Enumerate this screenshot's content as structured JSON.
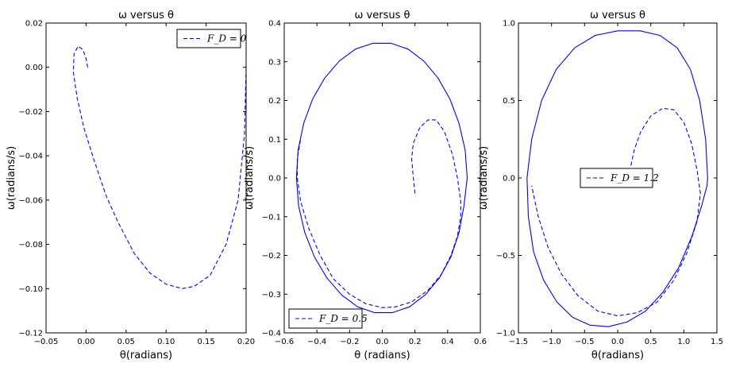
{
  "chart_data": [
    {
      "type": "line",
      "title": "ω versus θ",
      "xlabel": "θ(radians)",
      "ylabel": "ω(radians/s)",
      "xlim": [
        -0.05,
        0.2
      ],
      "ylim": [
        -0.12,
        0.02
      ],
      "xticks": [
        -0.05,
        0.0,
        0.05,
        0.1,
        0.15,
        0.2
      ],
      "yticks": [
        -0.12,
        -0.1,
        -0.08,
        -0.06,
        -0.04,
        -0.02,
        0.0,
        0.02
      ],
      "xtick_labels": [
        "−0.05",
        "0.00",
        "0.05",
        "0.10",
        "0.15",
        "0.20"
      ],
      "ytick_labels": [
        "−0.12",
        "−0.10",
        "−0.08",
        "−0.06",
        "−0.04",
        "−0.02",
        "0.00",
        "0.02"
      ],
      "legend": {
        "label": "F_D = 0",
        "position": "upper right"
      },
      "grid": false,
      "series": [
        {
          "name": "F_D = 0",
          "style": "dashed",
          "color": "#0000ff",
          "x": [
            0.2,
            0.198,
            0.19,
            0.175,
            0.155,
            0.135,
            0.12,
            0.1,
            0.08,
            0.06,
            0.04,
            0.025,
            0.01,
            -0.003,
            -0.011,
            -0.016,
            -0.015,
            -0.01,
            -0.004,
            0.0,
            0.002
          ],
          "y": [
            0.0,
            -0.03,
            -0.06,
            -0.08,
            -0.094,
            -0.099,
            -0.1,
            -0.098,
            -0.093,
            -0.084,
            -0.07,
            -0.058,
            -0.042,
            -0.027,
            -0.014,
            -0.002,
            0.006,
            0.0095,
            0.008,
            0.004,
            0.0
          ]
        }
      ]
    },
    {
      "type": "line",
      "title": "ω versus θ",
      "xlabel": "θ (radians)",
      "ylabel": "ω(radians/s)",
      "xlim": [
        -0.6,
        0.6
      ],
      "ylim": [
        -0.4,
        0.4
      ],
      "xticks": [
        -0.6,
        -0.4,
        -0.2,
        0.0,
        0.2,
        0.4,
        0.6
      ],
      "yticks": [
        -0.4,
        -0.3,
        -0.2,
        -0.1,
        0.0,
        0.1,
        0.2,
        0.3,
        0.4
      ],
      "xtick_labels": [
        "−0.6",
        "−0.4",
        "−0.2",
        "0.0",
        "0.2",
        "0.4",
        "0.6"
      ],
      "ytick_labels": [
        "−0.4",
        "−0.3",
        "−0.2",
        "−0.1",
        "0.0",
        "0.1",
        "0.2",
        "0.3",
        "0.4"
      ],
      "legend": {
        "label": "F_D = 0.5",
        "position": "lower left"
      },
      "grid": false,
      "series": [
        {
          "name": "F_D = 0.5",
          "style": "dashed",
          "color": "#0000ff",
          "x": [
            0.2,
            0.19,
            0.18,
            0.19,
            0.23,
            0.28,
            0.33,
            0.38,
            0.43,
            0.46,
            0.48,
            0.48,
            0.46,
            0.42,
            0.36,
            0.28,
            0.18,
            0.08,
            0.0,
            -0.1,
            -0.2,
            -0.3,
            -0.38,
            -0.45,
            -0.5,
            -0.52,
            -0.52,
            -0.5
          ],
          "y": [
            -0.04,
            0.0,
            0.05,
            0.09,
            0.13,
            0.15,
            0.15,
            0.12,
            0.06,
            0.0,
            -0.06,
            -0.1,
            -0.15,
            -0.2,
            -0.25,
            -0.29,
            -0.32,
            -0.333,
            -0.335,
            -0.325,
            -0.3,
            -0.26,
            -0.2,
            -0.13,
            -0.06,
            0.0,
            0.05,
            0.1
          ]
        },
        {
          "name": "",
          "style": "solid",
          "color": "#0000ff",
          "x": [
            0.52,
            0.507,
            0.47,
            0.414,
            0.341,
            0.254,
            0.157,
            0.052,
            -0.056,
            -0.163,
            -0.263,
            -0.352,
            -0.426,
            -0.481,
            -0.515,
            -0.525,
            -0.512,
            -0.474,
            -0.415,
            -0.339,
            -0.249,
            -0.15,
            -0.046,
            0.06,
            0.166,
            0.263,
            0.35,
            0.42,
            0.47,
            0.5,
            0.52
          ],
          "y": [
            0.0,
            0.072,
            0.141,
            0.204,
            0.258,
            0.302,
            0.333,
            0.348,
            0.348,
            0.333,
            0.302,
            0.258,
            0.204,
            0.141,
            0.072,
            0.0,
            -0.072,
            -0.141,
            -0.204,
            -0.258,
            -0.302,
            -0.333,
            -0.348,
            -0.348,
            -0.333,
            -0.302,
            -0.258,
            -0.204,
            -0.141,
            -0.072,
            0.0
          ]
        }
      ]
    },
    {
      "type": "line",
      "title": "ω versus θ",
      "xlabel": "θ(radians)",
      "ylabel": "ω(radians/s)",
      "xlim": [
        -1.5,
        1.5
      ],
      "ylim": [
        -1.0,
        1.0
      ],
      "xticks": [
        -1.5,
        -1.0,
        -0.5,
        0.0,
        0.5,
        1.0,
        1.5
      ],
      "yticks": [
        -1.0,
        -0.5,
        0.0,
        0.5,
        1.0
      ],
      "xtick_labels": [
        "−1.5",
        "−1.0",
        "−0.5",
        "0.0",
        "0.5",
        "1.0",
        "1.5"
      ],
      "ytick_labels": [
        "−1.0",
        "−0.5",
        "0.0",
        "0.5",
        "1.0"
      ],
      "legend": {
        "label": "F_D = 1.2",
        "position": "center"
      },
      "grid": false,
      "series": [
        {
          "name": "F_D = 1.2",
          "style": "dashed",
          "color": "#0000ff",
          "x": [
            0.2,
            0.25,
            0.35,
            0.5,
            0.68,
            0.85,
            1.0,
            1.12,
            1.2,
            1.25,
            1.2,
            1.05,
            0.85,
            0.6,
            0.3,
            0.0,
            -0.3,
            -0.6,
            -0.85,
            -1.05,
            -1.2,
            -1.3
          ],
          "y": [
            0.08,
            0.18,
            0.3,
            0.4,
            0.45,
            0.44,
            0.36,
            0.22,
            0.05,
            -0.1,
            -0.28,
            -0.48,
            -0.66,
            -0.8,
            -0.87,
            -0.89,
            -0.86,
            -0.76,
            -0.62,
            -0.45,
            -0.25,
            -0.05
          ]
        },
        {
          "name": "",
          "style": "solid",
          "color": "#0000ff",
          "x": [
            1.36,
            1.33,
            1.24,
            1.1,
            0.9,
            0.64,
            0.34,
            0.0,
            -0.34,
            -0.65,
            -0.93,
            -1.15,
            -1.3,
            -1.37,
            -1.35,
            -1.27,
            -1.12,
            -0.92,
            -0.68,
            -0.42,
            -0.14,
            0.14,
            0.42,
            0.68,
            0.92,
            1.12,
            1.27,
            1.35,
            1.36
          ],
          "y": [
            0.0,
            0.25,
            0.5,
            0.7,
            0.84,
            0.92,
            0.95,
            0.95,
            0.92,
            0.84,
            0.7,
            0.5,
            0.25,
            0.0,
            -0.25,
            -0.48,
            -0.66,
            -0.8,
            -0.9,
            -0.95,
            -0.96,
            -0.93,
            -0.86,
            -0.74,
            -0.58,
            -0.38,
            -0.18,
            -0.05,
            0.0
          ]
        }
      ]
    }
  ]
}
